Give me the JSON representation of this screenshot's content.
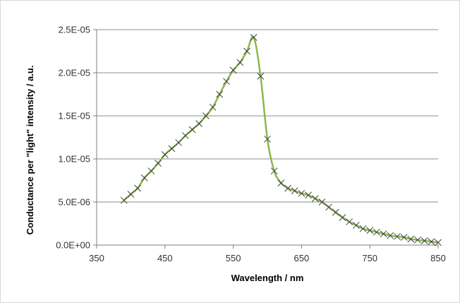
{
  "chart_data": {
    "type": "line",
    "xlabel": "Wavelength / nm",
    "ylabel": "Conductance per \"light\" intensity / a.u.",
    "xlim": [
      350,
      850
    ],
    "ylim": [
      0,
      2.5e-05
    ],
    "x_ticks": [
      350,
      450,
      550,
      650,
      750,
      850
    ],
    "x_tick_labels": [
      "350",
      "450",
      "550",
      "650",
      "750",
      "850"
    ],
    "y_ticks": [
      0,
      5e-06,
      1e-05,
      1.5e-05,
      2e-05,
      2.5e-05
    ],
    "y_tick_labels": [
      "0.0E+00",
      "5.0E-06",
      "1.0E-05",
      "1.5E-05",
      "2.0E-05",
      "2.5E-05"
    ],
    "grid": "horizontal",
    "legend": "none",
    "series": [
      {
        "line_color": "#8db84a",
        "marker": "x",
        "marker_color": "#404040",
        "x": [
          390,
          400,
          410,
          420,
          430,
          440,
          450,
          460,
          470,
          480,
          490,
          500,
          510,
          520,
          530,
          540,
          550,
          560,
          570,
          580,
          590,
          600,
          610,
          620,
          630,
          640,
          650,
          660,
          670,
          680,
          690,
          700,
          710,
          720,
          730,
          740,
          750,
          760,
          770,
          780,
          790,
          800,
          810,
          820,
          830,
          840,
          850
        ],
        "y": [
          5.2e-06,
          5.9e-06,
          6.6e-06,
          7.8e-06,
          8.6e-06,
          9.5e-06,
          1.05e-05,
          1.12e-05,
          1.19e-05,
          1.27e-05,
          1.34e-05,
          1.41e-05,
          1.5e-05,
          1.6e-05,
          1.75e-05,
          1.9e-05,
          2.03e-05,
          2.12e-05,
          2.25e-05,
          2.41e-05,
          1.96e-05,
          1.23e-05,
          8.6e-06,
          7.2e-06,
          6.6e-06,
          6.3e-06,
          6e-06,
          5.8e-06,
          5.4e-06,
          5e-06,
          4.4e-06,
          3.8e-06,
          3.2e-06,
          2.7e-06,
          2.3e-06,
          1.9e-06,
          1.7e-06,
          1.5e-06,
          1.3e-06,
          1.1e-06,
          1e-06,
          9e-07,
          7e-07,
          6e-07,
          5e-07,
          4e-07,
          3e-07
        ]
      }
    ]
  }
}
